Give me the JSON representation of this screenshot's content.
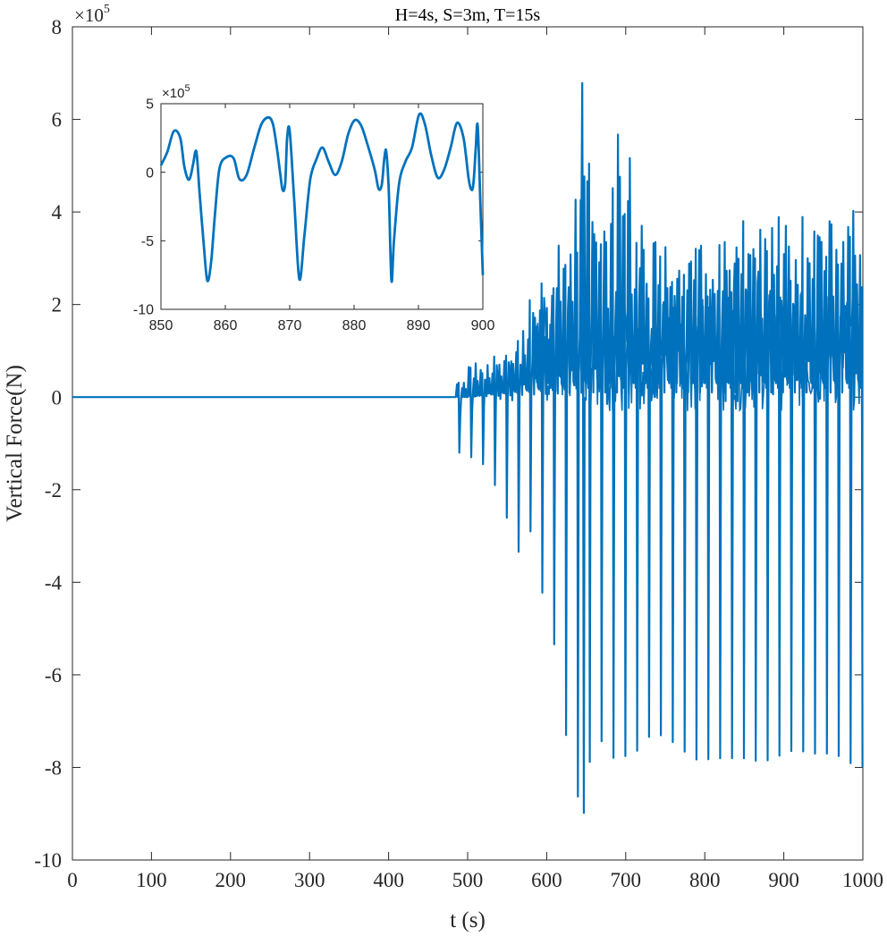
{
  "chart_data": [
    {
      "id": "main",
      "type": "line",
      "title": "H=4s, S=3m, T=15s",
      "xlabel": "t (s)",
      "ylabel": "Vertical Force(N)",
      "exponent_label": "×10",
      "exponent_power": "5",
      "xlim": [
        0,
        1000
      ],
      "ylim": [
        -10,
        8
      ],
      "y_scale_multiplier": 100000,
      "x_ticks": [
        0,
        100,
        200,
        300,
        400,
        500,
        600,
        700,
        800,
        900,
        1000
      ],
      "y_ticks": [
        -10,
        -8,
        -6,
        -4,
        -2,
        0,
        2,
        4,
        6,
        8
      ],
      "grid": false,
      "series_color": "#0072BD",
      "response_onset_s": 485,
      "wave_period_s": 15,
      "zero_before_onset": true,
      "extremes_x10e5": {
        "max": 6.8,
        "max_at_s": 645,
        "min": -9.0,
        "min_at_s": 647
      },
      "trough_envelope_x10e5": [
        {
          "t": 490,
          "min": -1.2
        },
        {
          "t": 505,
          "min": -1.3
        },
        {
          "t": 525,
          "min": -1.5
        },
        {
          "t": 545,
          "min": -2.3
        },
        {
          "t": 563,
          "min": -3.4
        },
        {
          "t": 580,
          "min": -2.9
        },
        {
          "t": 597,
          "min": -4.4
        },
        {
          "t": 615,
          "min": -5.7
        },
        {
          "t": 630,
          "min": -8.1
        },
        {
          "t": 647,
          "min": -9.0
        },
        {
          "t": 662,
          "min": -6.9
        },
        {
          "t": 677,
          "min": -7.9
        },
        {
          "t": 692,
          "min": -7.7
        },
        {
          "t": 707,
          "min": -7.8
        },
        {
          "t": 722,
          "min": -7.5
        },
        {
          "t": 737,
          "min": -7.2
        },
        {
          "t": 752,
          "min": -7.4
        },
        {
          "t": 767,
          "min": -7.5
        },
        {
          "t": 782,
          "min": -7.8
        },
        {
          "t": 797,
          "min": -7.85
        },
        {
          "t": 812,
          "min": -7.8
        },
        {
          "t": 827,
          "min": -7.8
        },
        {
          "t": 842,
          "min": -7.8
        },
        {
          "t": 857,
          "min": -7.8
        },
        {
          "t": 872,
          "min": -7.9
        },
        {
          "t": 887,
          "min": -7.8
        },
        {
          "t": 902,
          "min": -7.7
        },
        {
          "t": 917,
          "min": -7.6
        },
        {
          "t": 932,
          "min": -7.7
        },
        {
          "t": 947,
          "min": -7.7
        },
        {
          "t": 962,
          "min": -7.7
        },
        {
          "t": 977,
          "min": -7.8
        },
        {
          "t": 992,
          "min": -8.0
        }
      ],
      "peak_envelope_x10e5": [
        {
          "t": 490,
          "max": 0.4
        },
        {
          "t": 505,
          "max": 0.9
        },
        {
          "t": 525,
          "max": 0.8
        },
        {
          "t": 545,
          "max": 1.1
        },
        {
          "t": 563,
          "max": 1.6
        },
        {
          "t": 580,
          "max": 2.3
        },
        {
          "t": 597,
          "max": 3.0
        },
        {
          "t": 615,
          "max": 3.6
        },
        {
          "t": 630,
          "max": 4.4
        },
        {
          "t": 645,
          "max": 6.8
        },
        {
          "t": 660,
          "max": 4.6
        },
        {
          "t": 675,
          "max": 4.9
        },
        {
          "t": 690,
          "max": 6.6
        },
        {
          "t": 705,
          "max": 4.0
        },
        {
          "t": 720,
          "max": 3.8
        },
        {
          "t": 735,
          "max": 4.4
        },
        {
          "t": 750,
          "max": 3.7
        },
        {
          "t": 765,
          "max": 4.0
        },
        {
          "t": 780,
          "max": 3.5
        },
        {
          "t": 795,
          "max": 3.9
        },
        {
          "t": 810,
          "max": 4.2
        },
        {
          "t": 825,
          "max": 4.0
        },
        {
          "t": 840,
          "max": 4.1
        },
        {
          "t": 855,
          "max": 3.6
        },
        {
          "t": 870,
          "max": 4.2
        },
        {
          "t": 885,
          "max": 3.9
        },
        {
          "t": 900,
          "max": 4.4
        },
        {
          "t": 915,
          "max": 4.3
        },
        {
          "t": 930,
          "max": 3.6
        },
        {
          "t": 945,
          "max": 4.7
        },
        {
          "t": 960,
          "max": 4.3
        },
        {
          "t": 975,
          "max": 4.9
        },
        {
          "t": 990,
          "max": 4.6
        }
      ],
      "mean_level_x10e5": 1.0
    },
    {
      "id": "inset",
      "type": "line",
      "title": "",
      "xlabel": "",
      "ylabel": "",
      "exponent_label": "×10",
      "exponent_power": "5",
      "xlim": [
        850,
        900
      ],
      "ylim": [
        -10,
        5
      ],
      "x_ticks": [
        850,
        860,
        870,
        880,
        890,
        900
      ],
      "y_ticks": [
        -10,
        -5,
        0,
        5
      ],
      "grid": false,
      "series_color": "#0072BD",
      "x": [
        850,
        851,
        852,
        853,
        853.6,
        854.2,
        854.6,
        855.0,
        855.5,
        856.0,
        856.6,
        857.2,
        857.8,
        858.4,
        859.1,
        860.2,
        861.3,
        862.2,
        863.3,
        864.5,
        865.6,
        866.7,
        867.4,
        868.0,
        868.5,
        868.9,
        869.3,
        869.6,
        870.0,
        870.7,
        871.5,
        872.3,
        873.2,
        874.2,
        875.1,
        876.1,
        877.1,
        878.1,
        879.1,
        880.1,
        881.1,
        882.1,
        883.2,
        883.8,
        884.3,
        884.7,
        885.0,
        885.4,
        885.8,
        886.2,
        887.0,
        888.0,
        889.0,
        890.1,
        891.0,
        892.0,
        893.0,
        894.0,
        895.0,
        896.0,
        897.0,
        897.8,
        898.3,
        898.6,
        898.9,
        899.2,
        899.6,
        900.0
      ],
      "y": [
        0.5,
        1.5,
        3.0,
        2.5,
        0.5,
        -0.5,
        -0.3,
        0.6,
        1.5,
        -1.5,
        -5.0,
        -7.9,
        -6.5,
        -3.0,
        0.3,
        1.1,
        1.0,
        -0.5,
        -0.2,
        1.8,
        3.5,
        4.0,
        3.5,
        1.8,
        0.0,
        -1.3,
        -0.8,
        2.5,
        3.0,
        -2.0,
        -7.8,
        -4.5,
        -0.5,
        1.0,
        1.8,
        0.7,
        -0.2,
        0.8,
        2.8,
        3.8,
        3.4,
        2.0,
        0.2,
        -1.2,
        -0.9,
        1.0,
        1.5,
        -1.5,
        -7.9,
        -5.0,
        -0.8,
        0.8,
        1.8,
        4.2,
        3.5,
        1.2,
        -0.4,
        0.2,
        1.8,
        3.6,
        2.5,
        -0.5,
        -1.3,
        -0.5,
        1.8,
        3.4,
        -2.0,
        -7.5
      ]
    }
  ]
}
